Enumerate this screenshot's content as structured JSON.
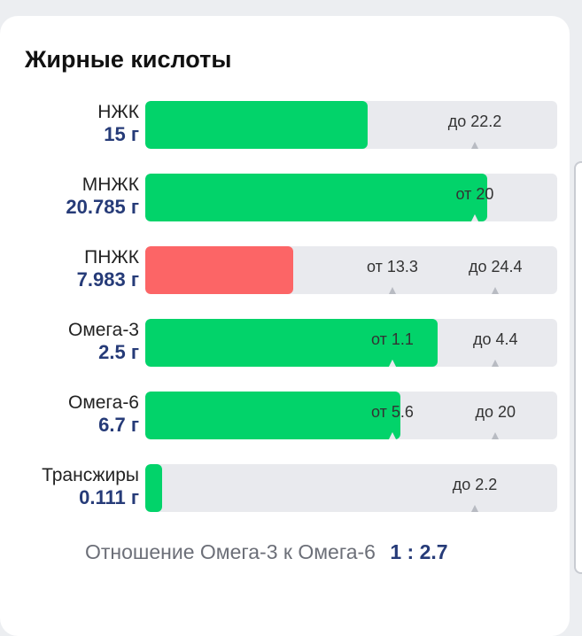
{
  "section": {
    "title": "Жирные кислоты"
  },
  "rows": [
    {
      "name": "НЖК",
      "amount": "15 г",
      "fill_fraction": 0.54,
      "status_color": "#02d36a",
      "marks": [
        {
          "label": "до 22.2",
          "position_fraction": 0.8
        }
      ]
    },
    {
      "name": "МНЖК",
      "amount": "20.785 г",
      "fill_fraction": 0.83,
      "status_color": "#02d36a",
      "marks": [
        {
          "label": "от 20",
          "position_fraction": 0.8
        }
      ]
    },
    {
      "name": "ПНЖК",
      "amount": "7.983 г",
      "fill_fraction": 0.36,
      "status_color": "#fc6566",
      "marks": [
        {
          "label": "от 13.3",
          "position_fraction": 0.6
        },
        {
          "label": "до 24.4",
          "position_fraction": 0.85
        }
      ]
    },
    {
      "name": "Омега-3",
      "amount": "2.5 г",
      "fill_fraction": 0.71,
      "status_color": "#02d36a",
      "marks": [
        {
          "label": "от 1.1",
          "position_fraction": 0.6
        },
        {
          "label": "до 4.4",
          "position_fraction": 0.85
        }
      ]
    },
    {
      "name": "Омега-6",
      "amount": "6.7 г",
      "fill_fraction": 0.62,
      "status_color": "#02d36a",
      "marks": [
        {
          "label": "от 5.6",
          "position_fraction": 0.6
        },
        {
          "label": "до 20",
          "position_fraction": 0.85
        }
      ]
    },
    {
      "name": "Трансжиры",
      "amount": "0.111 г",
      "fill_fraction": 0.04,
      "status_color": "#02d36a",
      "marks": [
        {
          "label": "до 2.2",
          "position_fraction": 0.8
        }
      ]
    }
  ],
  "ratio": {
    "label": "Отношение Омега-3 к Омега-6",
    "value": "1 : 2.7"
  }
}
